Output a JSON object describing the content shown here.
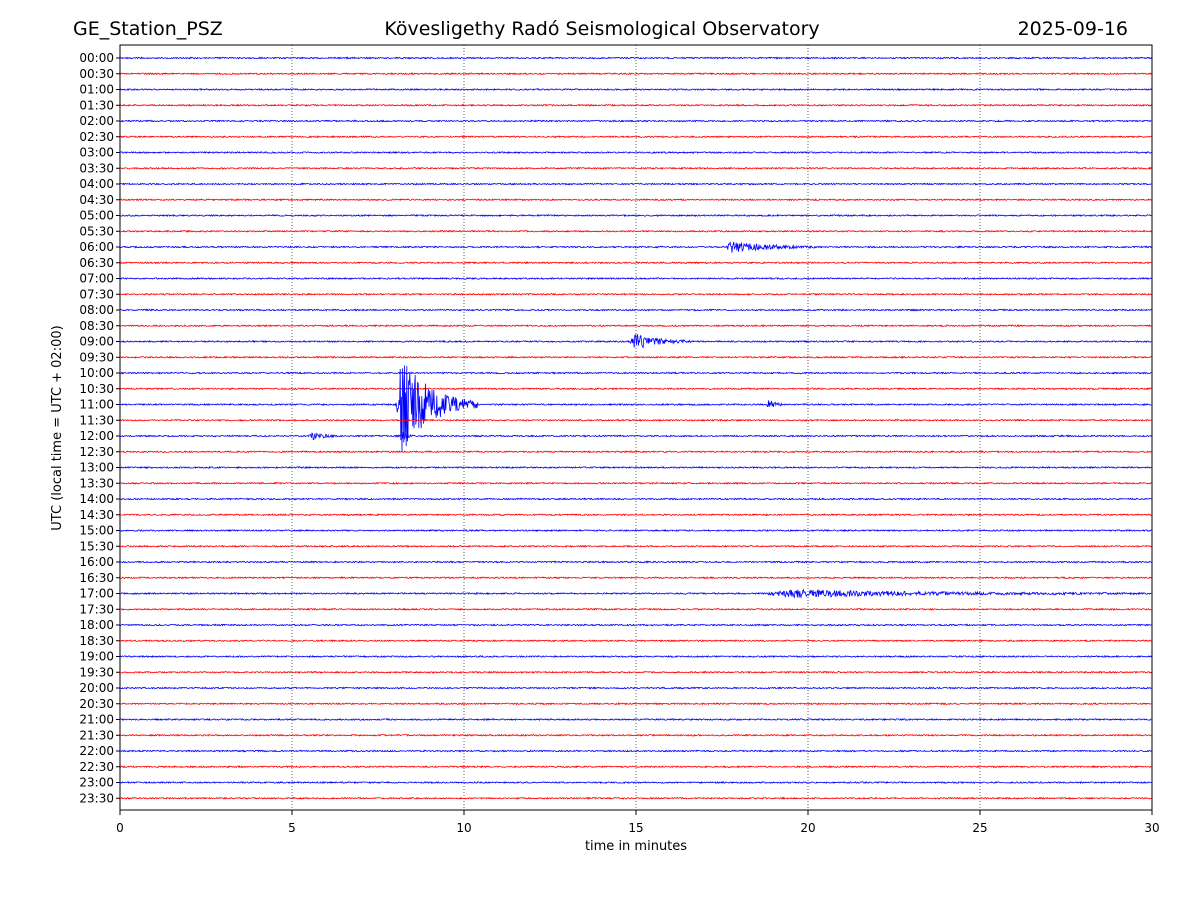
{
  "header": {
    "station": "GE_Station_PSZ",
    "observatory": "Kövesligethy Radó Seismological Observatory",
    "date": "2025-09-16"
  },
  "chart_data": {
    "type": "line",
    "title": "Kövesligethy Radó Seismological Observatory",
    "xlabel": "time in minutes",
    "ylabel": "UTC (local time = UTC + 02:00)",
    "xlim": [
      0,
      30
    ],
    "xticks": [
      "0",
      "5",
      "10",
      "15",
      "20",
      "25",
      "30"
    ],
    "vertical_gridlines": "dotted at 5, 10, 15, 20, 25",
    "rows": [
      "00:00",
      "00:30",
      "01:00",
      "01:30",
      "02:00",
      "02:30",
      "03:00",
      "03:30",
      "04:00",
      "04:30",
      "05:00",
      "05:30",
      "06:00",
      "06:30",
      "07:00",
      "07:30",
      "08:00",
      "08:30",
      "09:00",
      "09:30",
      "10:00",
      "10:30",
      "11:00",
      "11:30",
      "12:00",
      "12:30",
      "13:00",
      "13:30",
      "14:00",
      "14:30",
      "15:00",
      "15:30",
      "16:00",
      "16:30",
      "17:00",
      "17:30",
      "18:00",
      "18:30",
      "19:00",
      "19:30",
      "20:00",
      "20:30",
      "21:00",
      "21:30",
      "22:00",
      "22:30",
      "23:00",
      "23:30"
    ],
    "row_colors": [
      "#0000ff",
      "#ff0000"
    ],
    "events": [
      {
        "row": "06:00",
        "start_min": 17.6,
        "end_min": 20.2,
        "peak": 0.5
      },
      {
        "row": "09:00",
        "start_min": 14.8,
        "end_min": 16.6,
        "peak": 0.7
      },
      {
        "row": "11:00",
        "start_min": 8.0,
        "end_min": 10.4,
        "peak": 4.0
      },
      {
        "row": "11:00",
        "start_min": 18.8,
        "end_min": 19.4,
        "peak": 0.4
      },
      {
        "row": "12:00",
        "start_min": 5.5,
        "end_min": 6.3,
        "peak": 0.4
      },
      {
        "row": "12:00",
        "start_min": 8.2,
        "end_min": 8.5,
        "peak": 0.4
      },
      {
        "row": "17:00",
        "start_min": 18.7,
        "end_min": 30.0,
        "peak": 0.3
      }
    ]
  }
}
